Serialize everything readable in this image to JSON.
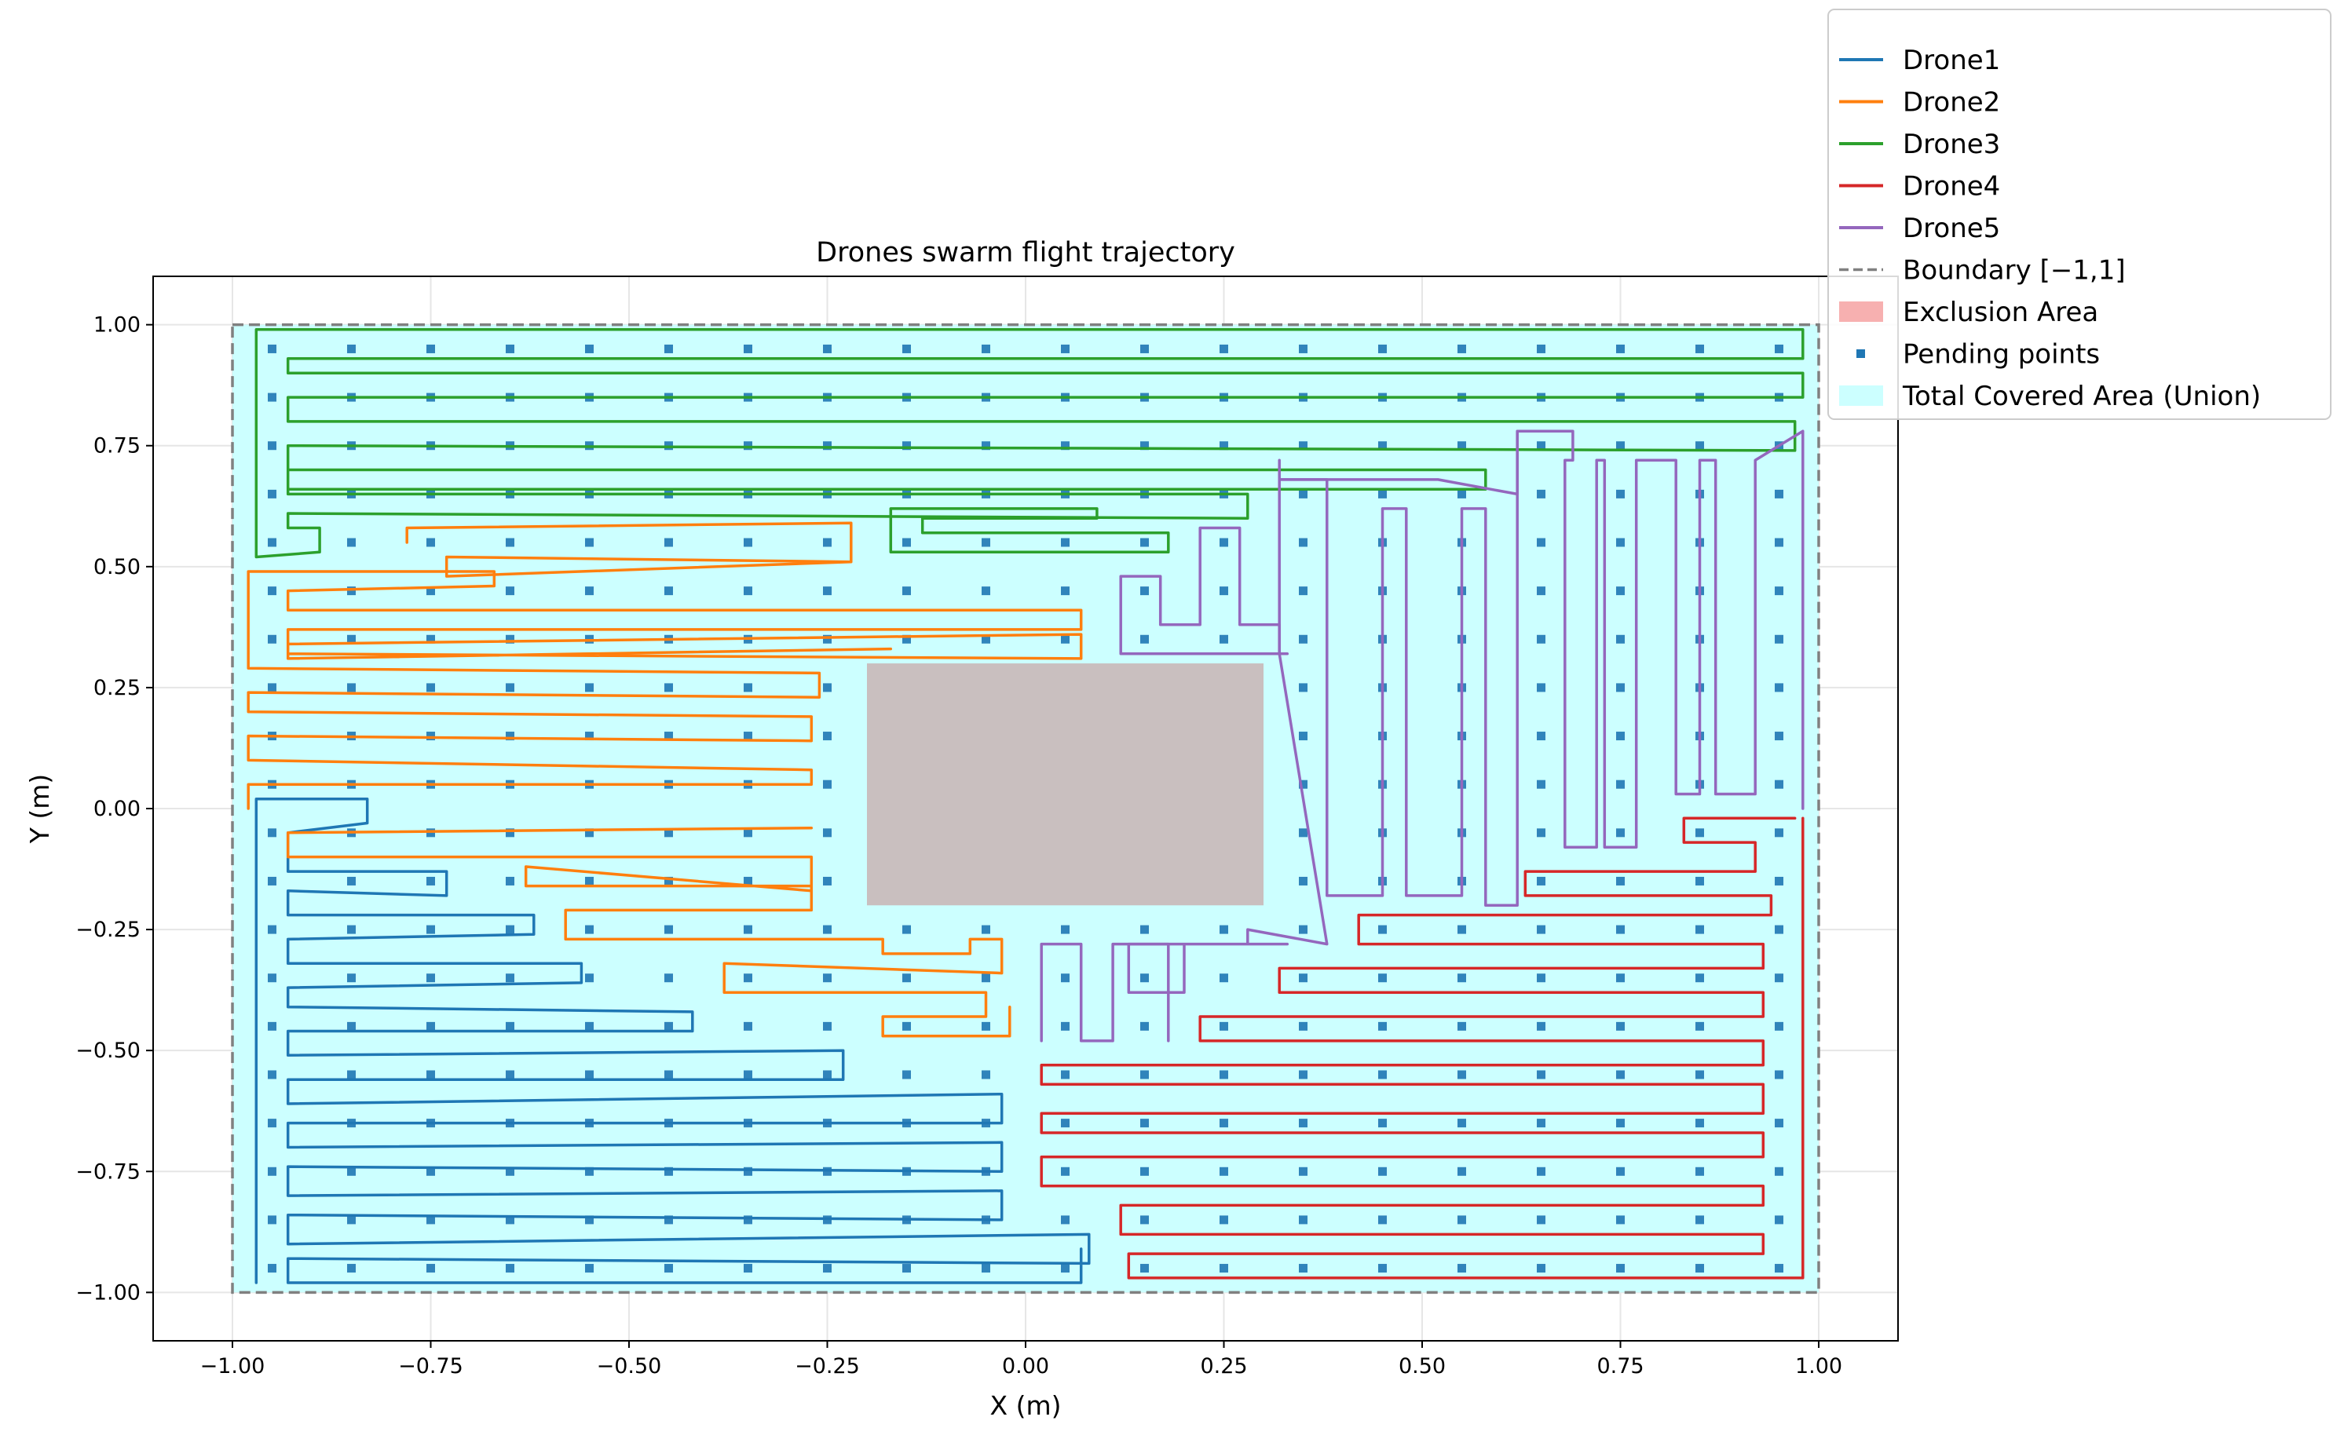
{
  "chart_data": {
    "type": "line",
    "title": "Drones swarm flight trajectory",
    "xlabel": "X (m)",
    "ylabel": "Y (m)",
    "xlim": [
      -1.1,
      1.1
    ],
    "ylim": [
      -1.1,
      1.1
    ],
    "xticks": [
      -1.0,
      -0.75,
      -0.5,
      -0.25,
      0.0,
      0.25,
      0.5,
      0.75,
      1.0
    ],
    "yticks": [
      -1.0,
      -0.75,
      -0.5,
      -0.25,
      0.0,
      0.25,
      0.5,
      0.75,
      1.0
    ],
    "xtick_labels": [
      "−1.00",
      "−0.75",
      "−0.50",
      "−0.25",
      "0.00",
      "0.25",
      "0.50",
      "0.75",
      "1.00"
    ],
    "ytick_labels": [
      "−1.00",
      "−0.75",
      "−0.50",
      "−0.25",
      "0.00",
      "0.25",
      "0.50",
      "0.75",
      "1.00"
    ],
    "grid": true,
    "legend_position": "top-right outside",
    "boundary": {
      "xmin": -1,
      "xmax": 1,
      "ymin": -1,
      "ymax": 1
    },
    "exclusion_area": {
      "xmin": -0.2,
      "xmax": 0.3,
      "ymin": -0.2,
      "ymax": 0.3
    },
    "legend": [
      {
        "label": "Drone1",
        "kind": "line",
        "color": "#1f77b4"
      },
      {
        "label": "Drone2",
        "kind": "line",
        "color": "#ff7f0e"
      },
      {
        "label": "Drone3",
        "kind": "line",
        "color": "#2ca02c"
      },
      {
        "label": "Drone4",
        "kind": "line",
        "color": "#d62728"
      },
      {
        "label": "Drone5",
        "kind": "line",
        "color": "#9467bd"
      },
      {
        "label": "Boundary [−1,1]",
        "kind": "dashed",
        "color": "#808080"
      },
      {
        "label": "Exclusion Area",
        "kind": "patch",
        "color": "#f7b0b0"
      },
      {
        "label": "Pending points",
        "kind": "marker",
        "color": "#1f77b4"
      },
      {
        "label": "Total Covered Area (Union)",
        "kind": "patch",
        "color": "#ccffff"
      }
    ],
    "pending_points": {
      "x": [
        -0.95,
        -0.85,
        -0.75,
        -0.65,
        -0.55,
        -0.45,
        -0.35,
        -0.25,
        -0.15,
        -0.05,
        0.05,
        0.15,
        0.25,
        0.35,
        0.45,
        0.55,
        0.65,
        0.75,
        0.85,
        0.95
      ],
      "y": [
        -0.95,
        -0.85,
        -0.75,
        -0.65,
        -0.55,
        -0.45,
        -0.35,
        -0.25,
        -0.15,
        -0.05,
        0.05,
        0.15,
        0.25,
        0.35,
        0.45,
        0.55,
        0.65,
        0.75,
        0.85,
        0.95
      ]
    },
    "series": [
      {
        "name": "Drone1",
        "color": "#1f77b4",
        "points": [
          [
            -0.97,
            -0.98
          ],
          [
            -0.97,
            0.02
          ],
          [
            -0.83,
            0.02
          ],
          [
            -0.83,
            -0.03
          ],
          [
            -0.93,
            -0.05
          ],
          [
            -0.93,
            -0.13
          ],
          [
            -0.73,
            -0.13
          ],
          [
            -0.73,
            -0.18
          ],
          [
            -0.93,
            -0.17
          ],
          [
            -0.93,
            -0.22
          ],
          [
            -0.62,
            -0.22
          ],
          [
            -0.62,
            -0.26
          ],
          [
            -0.93,
            -0.27
          ],
          [
            -0.93,
            -0.32
          ],
          [
            -0.56,
            -0.32
          ],
          [
            -0.56,
            -0.36
          ],
          [
            -0.93,
            -0.37
          ],
          [
            -0.93,
            -0.41
          ],
          [
            -0.42,
            -0.42
          ],
          [
            -0.42,
            -0.46
          ],
          [
            -0.93,
            -0.46
          ],
          [
            -0.93,
            -0.51
          ],
          [
            -0.23,
            -0.5
          ],
          [
            -0.23,
            -0.56
          ],
          [
            -0.93,
            -0.56
          ],
          [
            -0.93,
            -0.61
          ],
          [
            -0.03,
            -0.59
          ],
          [
            -0.03,
            -0.65
          ],
          [
            -0.93,
            -0.65
          ],
          [
            -0.93,
            -0.7
          ],
          [
            -0.03,
            -0.69
          ],
          [
            -0.03,
            -0.75
          ],
          [
            -0.93,
            -0.74
          ],
          [
            -0.93,
            -0.8
          ],
          [
            -0.03,
            -0.79
          ],
          [
            -0.03,
            -0.85
          ],
          [
            -0.93,
            -0.84
          ],
          [
            -0.93,
            -0.9
          ],
          [
            0.08,
            -0.88
          ],
          [
            0.08,
            -0.94
          ],
          [
            -0.93,
            -0.93
          ],
          [
            -0.93,
            -0.98
          ],
          [
            0.07,
            -0.98
          ],
          [
            0.07,
            -0.91
          ]
        ]
      },
      {
        "name": "Drone2",
        "color": "#ff7f0e",
        "points": [
          [
            -0.98,
            0.0
          ],
          [
            -0.98,
            0.05
          ],
          [
            -0.27,
            0.05
          ],
          [
            -0.27,
            0.08
          ],
          [
            -0.98,
            0.1
          ],
          [
            -0.98,
            0.15
          ],
          [
            -0.27,
            0.14
          ],
          [
            -0.27,
            0.19
          ],
          [
            -0.98,
            0.2
          ],
          [
            -0.98,
            0.24
          ],
          [
            -0.26,
            0.23
          ],
          [
            -0.26,
            0.28
          ],
          [
            -0.98,
            0.29
          ],
          [
            -0.98,
            0.49
          ],
          [
            -0.67,
            0.49
          ],
          [
            -0.67,
            0.46
          ],
          [
            -0.93,
            0.45
          ],
          [
            -0.93,
            0.41
          ],
          [
            0.07,
            0.41
          ],
          [
            0.07,
            0.37
          ],
          [
            -0.93,
            0.37
          ],
          [
            -0.93,
            0.32
          ],
          [
            0.07,
            0.31
          ],
          [
            0.07,
            0.36
          ],
          [
            -0.93,
            0.34
          ],
          [
            -0.93,
            0.31
          ],
          [
            -0.17,
            0.33
          ]
        ]
      },
      {
        "name": "Drone2",
        "color": "#ff7f0e",
        "points": [
          [
            -0.27,
            -0.04
          ],
          [
            -0.93,
            -0.05
          ],
          [
            -0.93,
            -0.1
          ],
          [
            -0.27,
            -0.1
          ],
          [
            -0.27,
            -0.17
          ],
          [
            -0.63,
            -0.12
          ],
          [
            -0.63,
            -0.16
          ],
          [
            -0.27,
            -0.16
          ],
          [
            -0.27,
            -0.21
          ],
          [
            -0.58,
            -0.21
          ],
          [
            -0.58,
            -0.27
          ],
          [
            -0.18,
            -0.27
          ],
          [
            -0.18,
            -0.3
          ],
          [
            -0.07,
            -0.3
          ],
          [
            -0.07,
            -0.27
          ],
          [
            -0.03,
            -0.27
          ],
          [
            -0.03,
            -0.34
          ],
          [
            -0.38,
            -0.32
          ],
          [
            -0.38,
            -0.38
          ],
          [
            -0.05,
            -0.38
          ],
          [
            -0.05,
            -0.43
          ],
          [
            -0.18,
            -0.43
          ],
          [
            -0.18,
            -0.47
          ],
          [
            -0.02,
            -0.47
          ],
          [
            -0.02,
            -0.41
          ]
        ]
      },
      {
        "name": "Drone2",
        "color": "#ff7f0e",
        "points": [
          [
            -0.78,
            0.55
          ],
          [
            -0.78,
            0.58
          ],
          [
            -0.22,
            0.59
          ],
          [
            -0.22,
            0.51
          ],
          [
            -0.73,
            0.52
          ],
          [
            -0.73,
            0.5
          ],
          [
            -0.73,
            0.48
          ],
          [
            -0.22,
            0.51
          ]
        ]
      },
      {
        "name": "Drone3",
        "color": "#2ca02c",
        "points": [
          [
            -0.97,
            0.99
          ],
          [
            0.98,
            0.99
          ],
          [
            0.98,
            0.93
          ],
          [
            -0.93,
            0.93
          ],
          [
            -0.93,
            0.9
          ],
          [
            0.98,
            0.9
          ],
          [
            0.98,
            0.85
          ],
          [
            -0.93,
            0.85
          ],
          [
            -0.93,
            0.8
          ],
          [
            0.97,
            0.8
          ],
          [
            0.97,
            0.74
          ],
          [
            -0.93,
            0.75
          ],
          [
            -0.93,
            0.7
          ],
          [
            0.58,
            0.7
          ],
          [
            0.58,
            0.66
          ],
          [
            -0.93,
            0.66
          ],
          [
            -0.93,
            0.7
          ],
          [
            -0.93,
            0.65
          ],
          [
            0.28,
            0.65
          ],
          [
            0.28,
            0.6
          ],
          [
            -0.93,
            0.61
          ],
          [
            -0.93,
            0.58
          ],
          [
            -0.89,
            0.58
          ],
          [
            -0.89,
            0.53
          ],
          [
            -0.97,
            0.52
          ],
          [
            -0.97,
            0.99
          ]
        ]
      },
      {
        "name": "Drone3",
        "color": "#2ca02c",
        "points": [
          [
            -0.17,
            0.53
          ],
          [
            -0.17,
            0.62
          ],
          [
            0.09,
            0.62
          ],
          [
            0.09,
            0.6
          ],
          [
            -0.13,
            0.6
          ],
          [
            -0.13,
            0.57
          ],
          [
            0.18,
            0.57
          ],
          [
            0.18,
            0.53
          ],
          [
            -0.17,
            0.53
          ]
        ]
      },
      {
        "name": "Drone4",
        "color": "#d62728",
        "points": [
          [
            0.97,
            -0.02
          ],
          [
            0.83,
            -0.02
          ],
          [
            0.83,
            -0.07
          ],
          [
            0.92,
            -0.07
          ],
          [
            0.92,
            -0.13
          ],
          [
            0.63,
            -0.13
          ],
          [
            0.63,
            -0.18
          ],
          [
            0.94,
            -0.18
          ],
          [
            0.94,
            -0.22
          ],
          [
            0.42,
            -0.22
          ],
          [
            0.42,
            -0.28
          ],
          [
            0.93,
            -0.28
          ],
          [
            0.93,
            -0.33
          ],
          [
            0.32,
            -0.33
          ],
          [
            0.32,
            -0.38
          ],
          [
            0.93,
            -0.38
          ],
          [
            0.93,
            -0.43
          ],
          [
            0.22,
            -0.43
          ],
          [
            0.22,
            -0.48
          ],
          [
            0.93,
            -0.48
          ],
          [
            0.93,
            -0.53
          ],
          [
            0.02,
            -0.53
          ],
          [
            0.02,
            -0.57
          ],
          [
            0.93,
            -0.57
          ],
          [
            0.93,
            -0.63
          ],
          [
            0.02,
            -0.63
          ],
          [
            0.02,
            -0.67
          ],
          [
            0.93,
            -0.67
          ],
          [
            0.93,
            -0.72
          ],
          [
            0.02,
            -0.72
          ],
          [
            0.02,
            -0.78
          ],
          [
            0.93,
            -0.78
          ],
          [
            0.93,
            -0.82
          ],
          [
            0.12,
            -0.82
          ],
          [
            0.12,
            -0.88
          ],
          [
            0.93,
            -0.88
          ],
          [
            0.93,
            -0.92
          ],
          [
            0.13,
            -0.92
          ],
          [
            0.13,
            -0.97
          ],
          [
            0.98,
            -0.97
          ],
          [
            0.98,
            -0.02
          ]
        ]
      },
      {
        "name": "Drone5",
        "color": "#9467bd",
        "points": [
          [
            0.33,
            -0.28
          ],
          [
            0.33,
            -0.28
          ],
          [
            0.13,
            -0.28
          ],
          [
            0.13,
            -0.38
          ],
          [
            0.2,
            -0.38
          ],
          [
            0.2,
            -0.28
          ],
          [
            0.28,
            -0.28
          ],
          [
            0.28,
            -0.25
          ],
          [
            0.38,
            -0.28
          ],
          [
            0.32,
            0.32
          ],
          [
            0.32,
            0.68
          ],
          [
            0.38,
            0.68
          ],
          [
            0.38,
            -0.18
          ],
          [
            0.45,
            -0.18
          ],
          [
            0.45,
            0.62
          ],
          [
            0.48,
            0.62
          ],
          [
            0.48,
            -0.18
          ],
          [
            0.55,
            -0.18
          ],
          [
            0.55,
            0.62
          ],
          [
            0.58,
            0.62
          ],
          [
            0.58,
            -0.2
          ],
          [
            0.62,
            -0.2
          ],
          [
            0.62,
            0.78
          ],
          [
            0.69,
            0.78
          ],
          [
            0.69,
            0.72
          ],
          [
            0.68,
            0.72
          ],
          [
            0.68,
            -0.08
          ],
          [
            0.72,
            -0.08
          ],
          [
            0.72,
            0.72
          ],
          [
            0.73,
            0.72
          ],
          [
            0.73,
            -0.08
          ],
          [
            0.77,
            -0.08
          ],
          [
            0.77,
            0.72
          ],
          [
            0.82,
            0.72
          ],
          [
            0.82,
            0.03
          ],
          [
            0.85,
            0.03
          ],
          [
            0.85,
            0.72
          ],
          [
            0.87,
            0.72
          ],
          [
            0.87,
            0.03
          ],
          [
            0.92,
            0.03
          ],
          [
            0.92,
            0.72
          ],
          [
            0.98,
            0.78
          ],
          [
            0.98,
            0.0
          ]
        ]
      },
      {
        "name": "Drone5",
        "color": "#9467bd",
        "points": [
          [
            0.33,
            0.32
          ],
          [
            0.12,
            0.32
          ],
          [
            0.12,
            0.48
          ],
          [
            0.17,
            0.48
          ],
          [
            0.17,
            0.38
          ],
          [
            0.22,
            0.38
          ],
          [
            0.22,
            0.58
          ],
          [
            0.27,
            0.58
          ],
          [
            0.27,
            0.38
          ],
          [
            0.32,
            0.38
          ],
          [
            0.32,
            0.32
          ]
        ]
      },
      {
        "name": "Drone5",
        "color": "#9467bd",
        "points": [
          [
            0.02,
            -0.48
          ],
          [
            0.02,
            -0.28
          ],
          [
            0.07,
            -0.28
          ],
          [
            0.07,
            -0.48
          ],
          [
            0.11,
            -0.48
          ],
          [
            0.11,
            -0.28
          ],
          [
            0.18,
            -0.28
          ],
          [
            0.18,
            -0.48
          ]
        ]
      },
      {
        "name": "Drone5",
        "color": "#9467bd",
        "points": [
          [
            0.32,
            0.72
          ],
          [
            0.32,
            0.68
          ],
          [
            0.52,
            0.68
          ],
          [
            0.62,
            0.65
          ],
          [
            0.62,
            0.78
          ]
        ]
      }
    ]
  }
}
